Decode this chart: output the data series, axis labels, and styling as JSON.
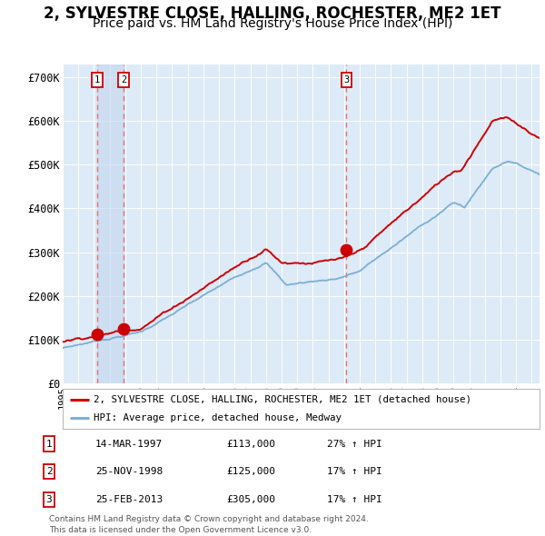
{
  "title": "2, SYLVESTRE CLOSE, HALLING, ROCHESTER, ME2 1ET",
  "subtitle": "Price paid vs. HM Land Registry's House Price Index (HPI)",
  "title_fontsize": 12,
  "subtitle_fontsize": 10,
  "background_color": "#ffffff",
  "plot_bg_color": "#ddeaf7",
  "grid_color": "#ffffff",
  "red_line_color": "#cc0000",
  "blue_line_color": "#7bafd4",
  "sale_marker_color": "#cc0000",
  "dashed_line_color": "#e87070",
  "shade_color": "#c5d8ee",
  "ylim": [
    0,
    730000
  ],
  "yticks": [
    0,
    100000,
    200000,
    300000,
    400000,
    500000,
    600000,
    700000
  ],
  "ytick_labels": [
    "£0",
    "£100K",
    "£200K",
    "£300K",
    "£400K",
    "£500K",
    "£600K",
    "£700K"
  ],
  "sale_dates": [
    1997.21,
    1998.9,
    2013.15
  ],
  "sale_prices": [
    113000,
    125000,
    305000
  ],
  "sale_labels": [
    "1",
    "2",
    "3"
  ],
  "shade_spans": [
    [
      1997.21,
      1998.9
    ]
  ],
  "legend_entries": [
    "2, SYLVESTRE CLOSE, HALLING, ROCHESTER, ME2 1ET (detached house)",
    "HPI: Average price, detached house, Medway"
  ],
  "table_rows": [
    [
      "1",
      "14-MAR-1997",
      "£113,000",
      "27% ↑ HPI"
    ],
    [
      "2",
      "25-NOV-1998",
      "£125,000",
      "17% ↑ HPI"
    ],
    [
      "3",
      "25-FEB-2013",
      "£305,000",
      "17% ↑ HPI"
    ]
  ],
  "footnote": "Contains HM Land Registry data © Crown copyright and database right 2024.\nThis data is licensed under the Open Government Licence v3.0."
}
